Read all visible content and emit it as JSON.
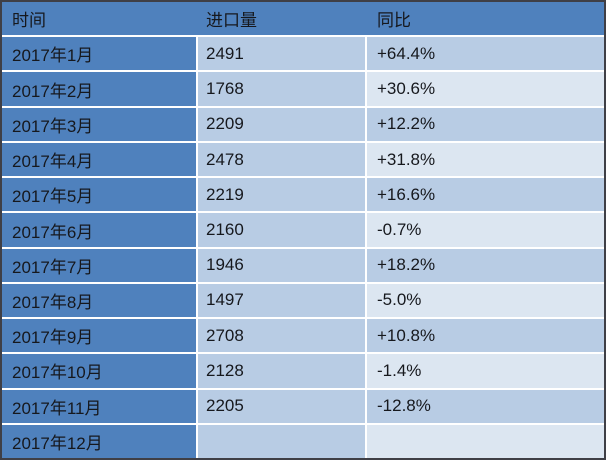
{
  "colors": {
    "header_bg": "#4F81BD",
    "row_label_bg": "#4F81BD",
    "cell_bg": "#B8CCE4",
    "cell_bg_alt": "#DCE6F1",
    "divider": "#FFFFFF",
    "outer_border": "#3F3F46",
    "text": "#16181D"
  },
  "chart_data": {
    "type": "table",
    "columns": [
      "时间",
      "进口量",
      "同比"
    ],
    "rows": [
      [
        "2017年1月",
        "2491",
        "+64.4%"
      ],
      [
        "2017年2月",
        "1768",
        "+30.6%"
      ],
      [
        "2017年3月",
        "2209",
        "+12.2%"
      ],
      [
        "2017年4月",
        "2478",
        "+31.8%"
      ],
      [
        "2017年5月",
        "2219",
        "+16.6%"
      ],
      [
        "2017年6月",
        "2160",
        "-0.7%"
      ],
      [
        "2017年7月",
        "1946",
        "+18.2%"
      ],
      [
        "2017年8月",
        "1497",
        "-5.0%"
      ],
      [
        "2017年9月",
        "2708",
        "+10.8%"
      ],
      [
        "2017年10月",
        "2128",
        "-1.4%"
      ],
      [
        "2017年11月",
        "2205",
        "-12.8%"
      ],
      [
        "2017年12月",
        "",
        ""
      ]
    ],
    "layout": {
      "grid": "white 2px dividers between rows and data columns",
      "yoy_column_banding": "alternates cell_bg (odd rows) and cell_bg_alt (even rows)"
    }
  }
}
